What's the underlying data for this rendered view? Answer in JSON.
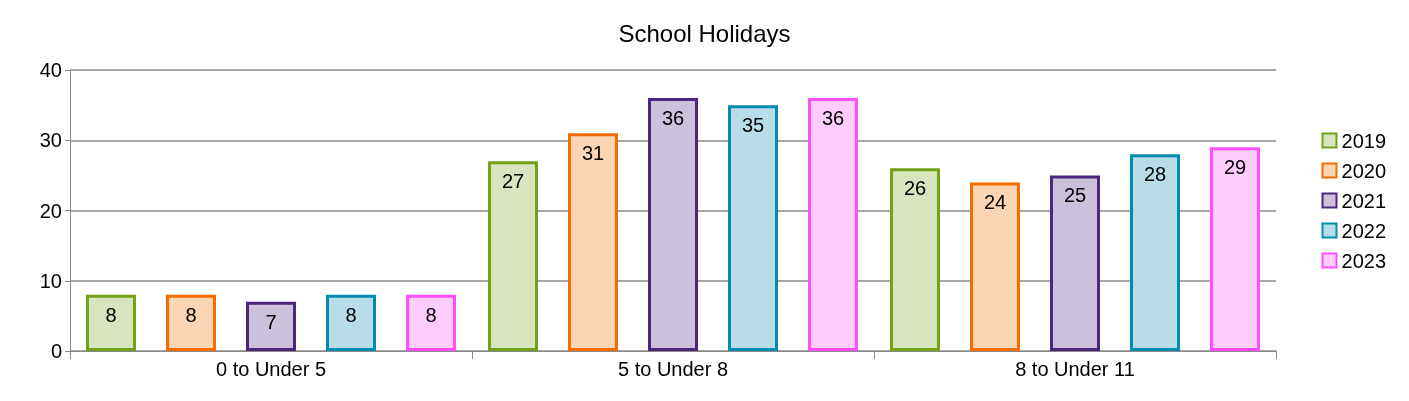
{
  "chart_data": {
    "type": "bar",
    "title": "School Holidays",
    "categories": [
      "0 to Under 5",
      "5 to Under 8",
      "8 to Under 11"
    ],
    "series": [
      {
        "name": "2019",
        "color": "#d7e4bd",
        "values": [
          8,
          27,
          26
        ]
      },
      {
        "name": "2020",
        "color": "#fcd5b5",
        "values": [
          8,
          31,
          24
        ]
      },
      {
        "name": "2021",
        "color": "#ccc1da",
        "values": [
          7,
          36,
          25
        ]
      },
      {
        "name": "2022",
        "color": "#b7dee8",
        "values": [
          8,
          35,
          28
        ]
      },
      {
        "name": "2023",
        "color": "#ffccff",
        "values": [
          8,
          36,
          29
        ]
      }
    ],
    "ylim": [
      0,
      40
    ],
    "yticks": [
      0,
      10,
      20,
      30,
      40
    ],
    "grid": "y",
    "legend": "right",
    "data_labels": true
  }
}
